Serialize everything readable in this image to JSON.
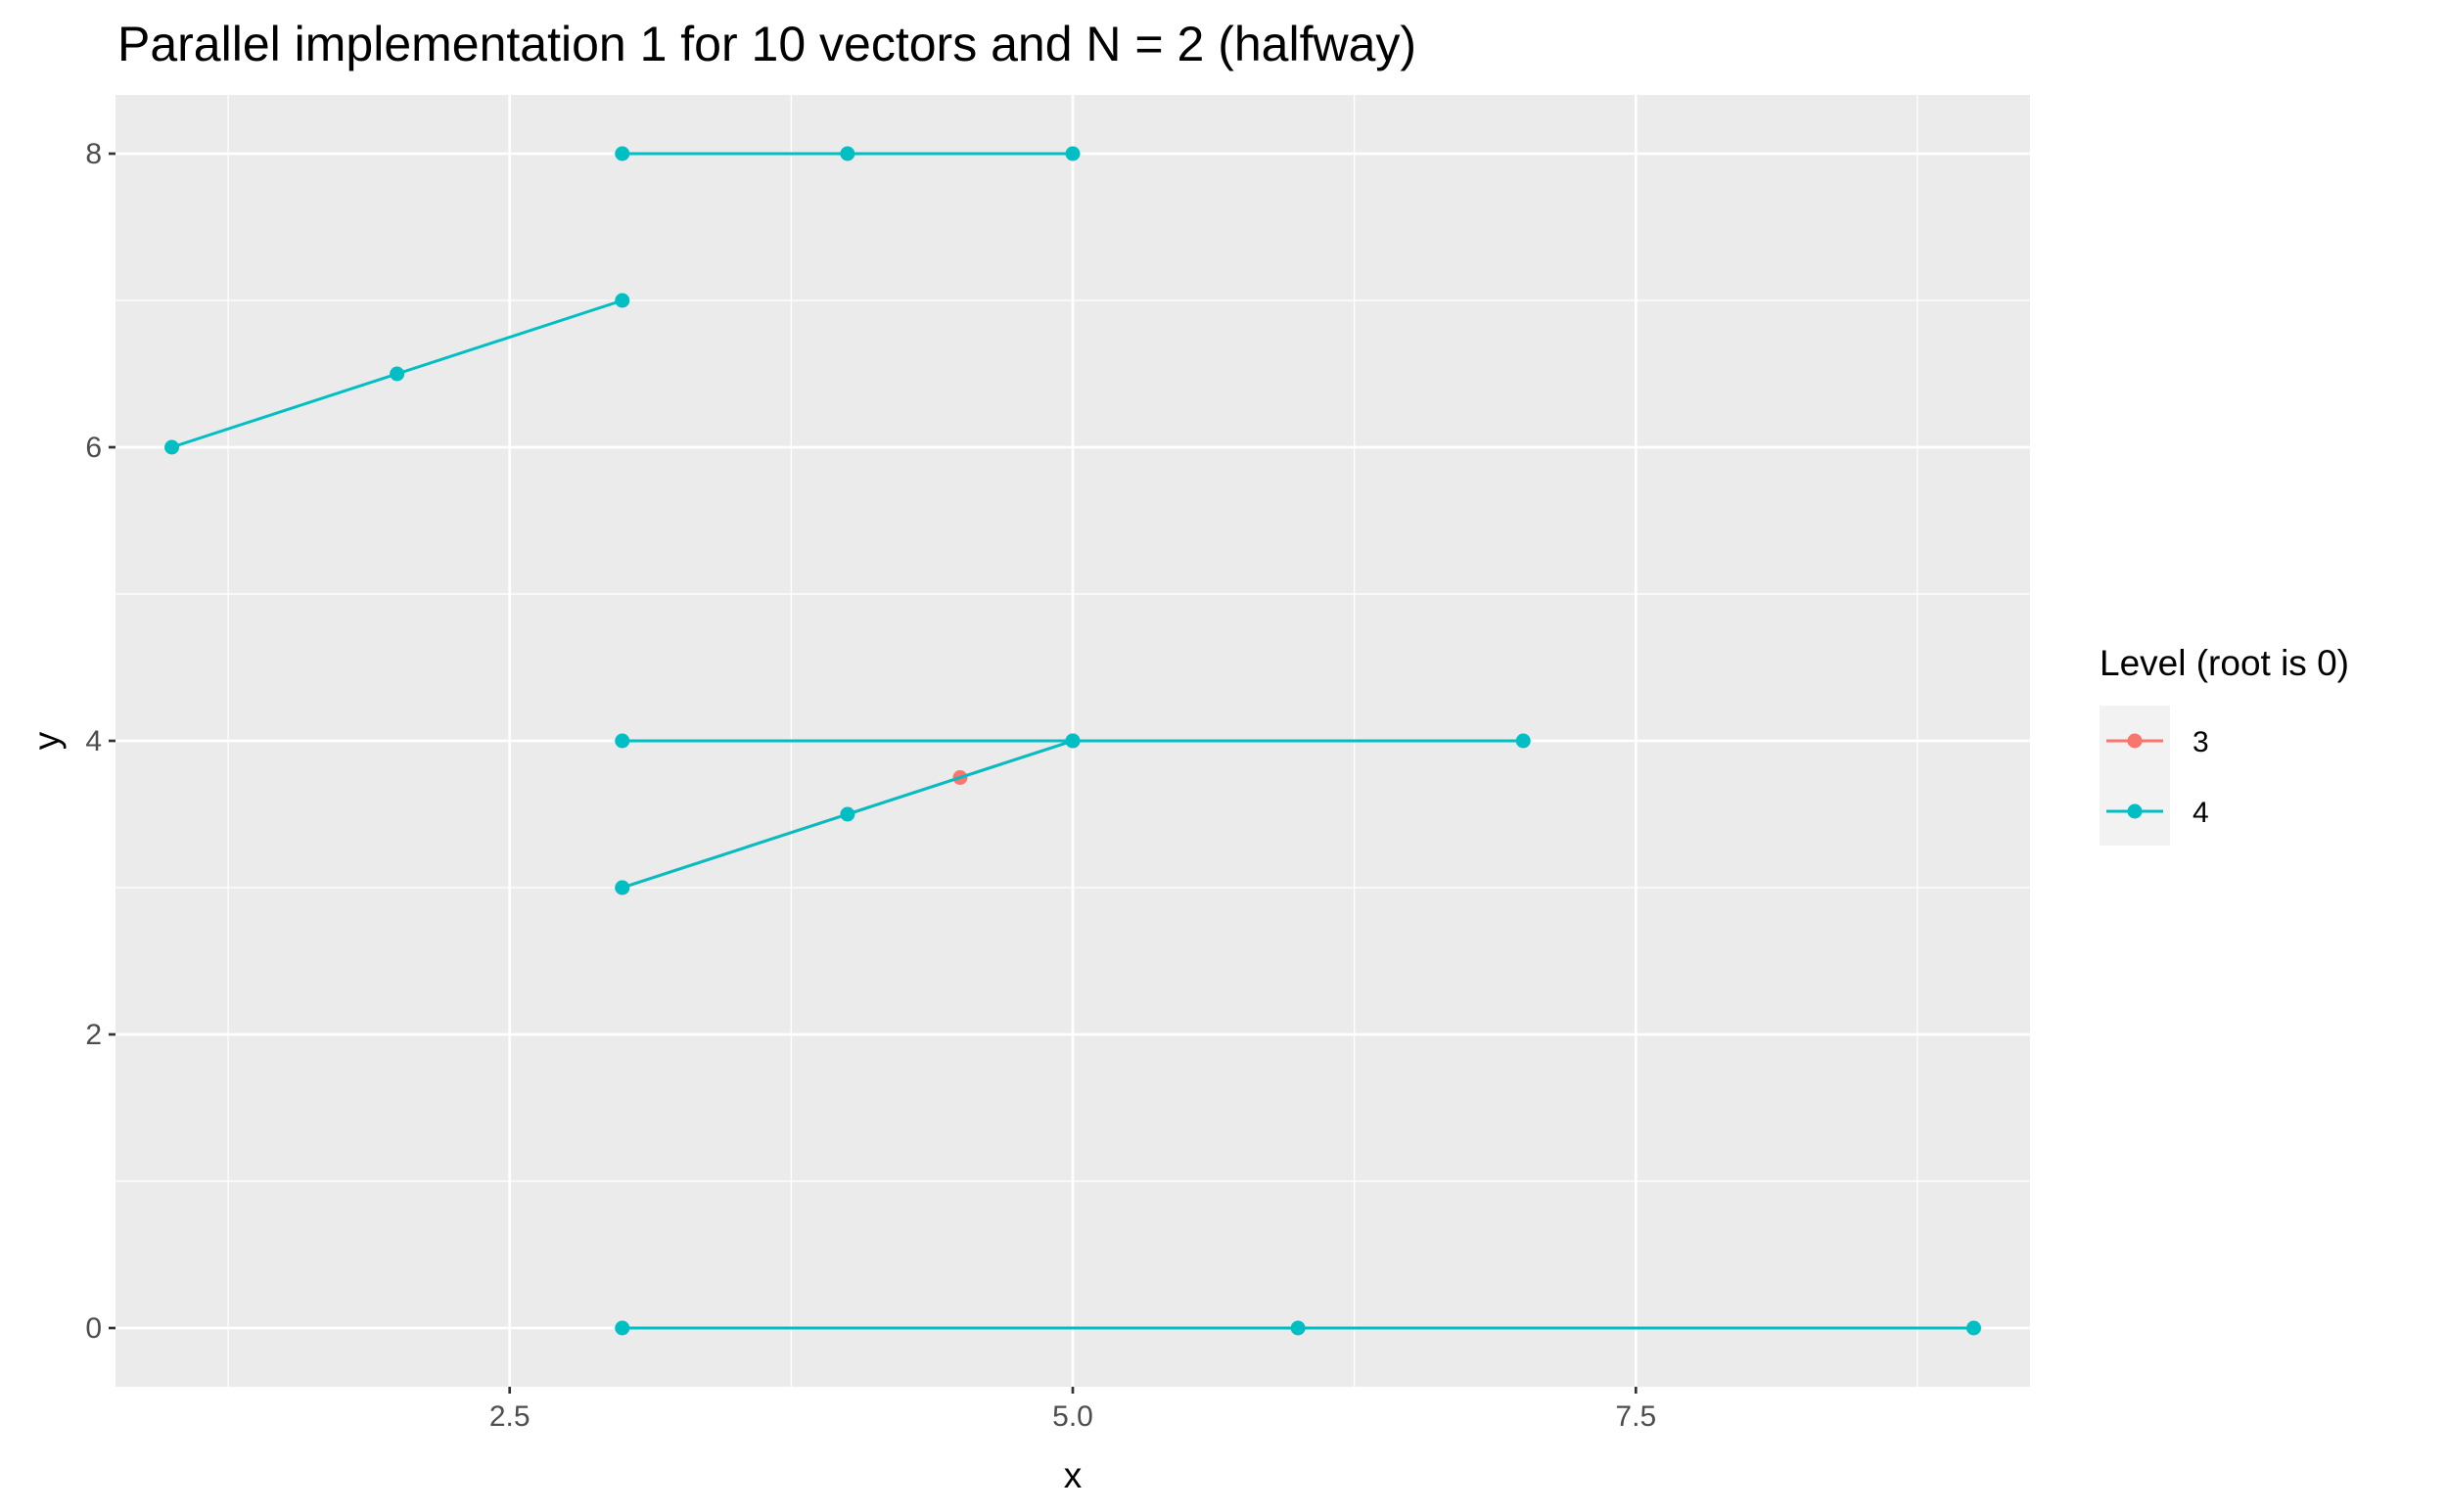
{
  "chart_data": {
    "type": "line",
    "title": "Parallel implementation 1 for 10 vectors and N = 2 (halfway)",
    "xlabel": "x",
    "ylabel": "y",
    "xlim": [
      0.75,
      9.25
    ],
    "ylim": [
      -0.4,
      8.4
    ],
    "x_ticks": [
      2.5,
      5.0,
      7.5
    ],
    "x_tick_labels": [
      "2.5",
      "5.0",
      "7.5"
    ],
    "y_ticks": [
      0,
      2,
      4,
      6,
      8
    ],
    "y_tick_labels": [
      "0",
      "2",
      "4",
      "6",
      "8"
    ],
    "grid": true,
    "legend": {
      "title": "Level (root is 0)",
      "placement": "right",
      "entries": [
        {
          "label": "3",
          "color": "#F8766D"
        },
        {
          "label": "4",
          "color": "#00BFC4"
        }
      ]
    },
    "series": [
      {
        "level": "4",
        "color": "#00BFC4",
        "points": [
          [
            3,
            8
          ],
          [
            4,
            8
          ],
          [
            5,
            8
          ]
        ]
      },
      {
        "level": "4",
        "color": "#00BFC4",
        "points": [
          [
            1,
            6
          ],
          [
            2,
            6.5
          ],
          [
            3,
            7
          ]
        ]
      },
      {
        "level": "4",
        "color": "#00BFC4",
        "points": [
          [
            3,
            4
          ],
          [
            5,
            4
          ],
          [
            7,
            4
          ]
        ]
      },
      {
        "level": "3",
        "color": "#F8766D",
        "points": [
          [
            3,
            3
          ],
          [
            4.5,
            3.75
          ],
          [
            5,
            4
          ]
        ]
      },
      {
        "level": "4",
        "color": "#00BFC4",
        "points": [
          [
            3,
            3
          ],
          [
            4,
            3.5
          ],
          [
            5,
            4
          ]
        ]
      },
      {
        "level": "4",
        "color": "#00BFC4",
        "points": [
          [
            3,
            0
          ],
          [
            6,
            0
          ],
          [
            9,
            0
          ]
        ]
      }
    ]
  }
}
